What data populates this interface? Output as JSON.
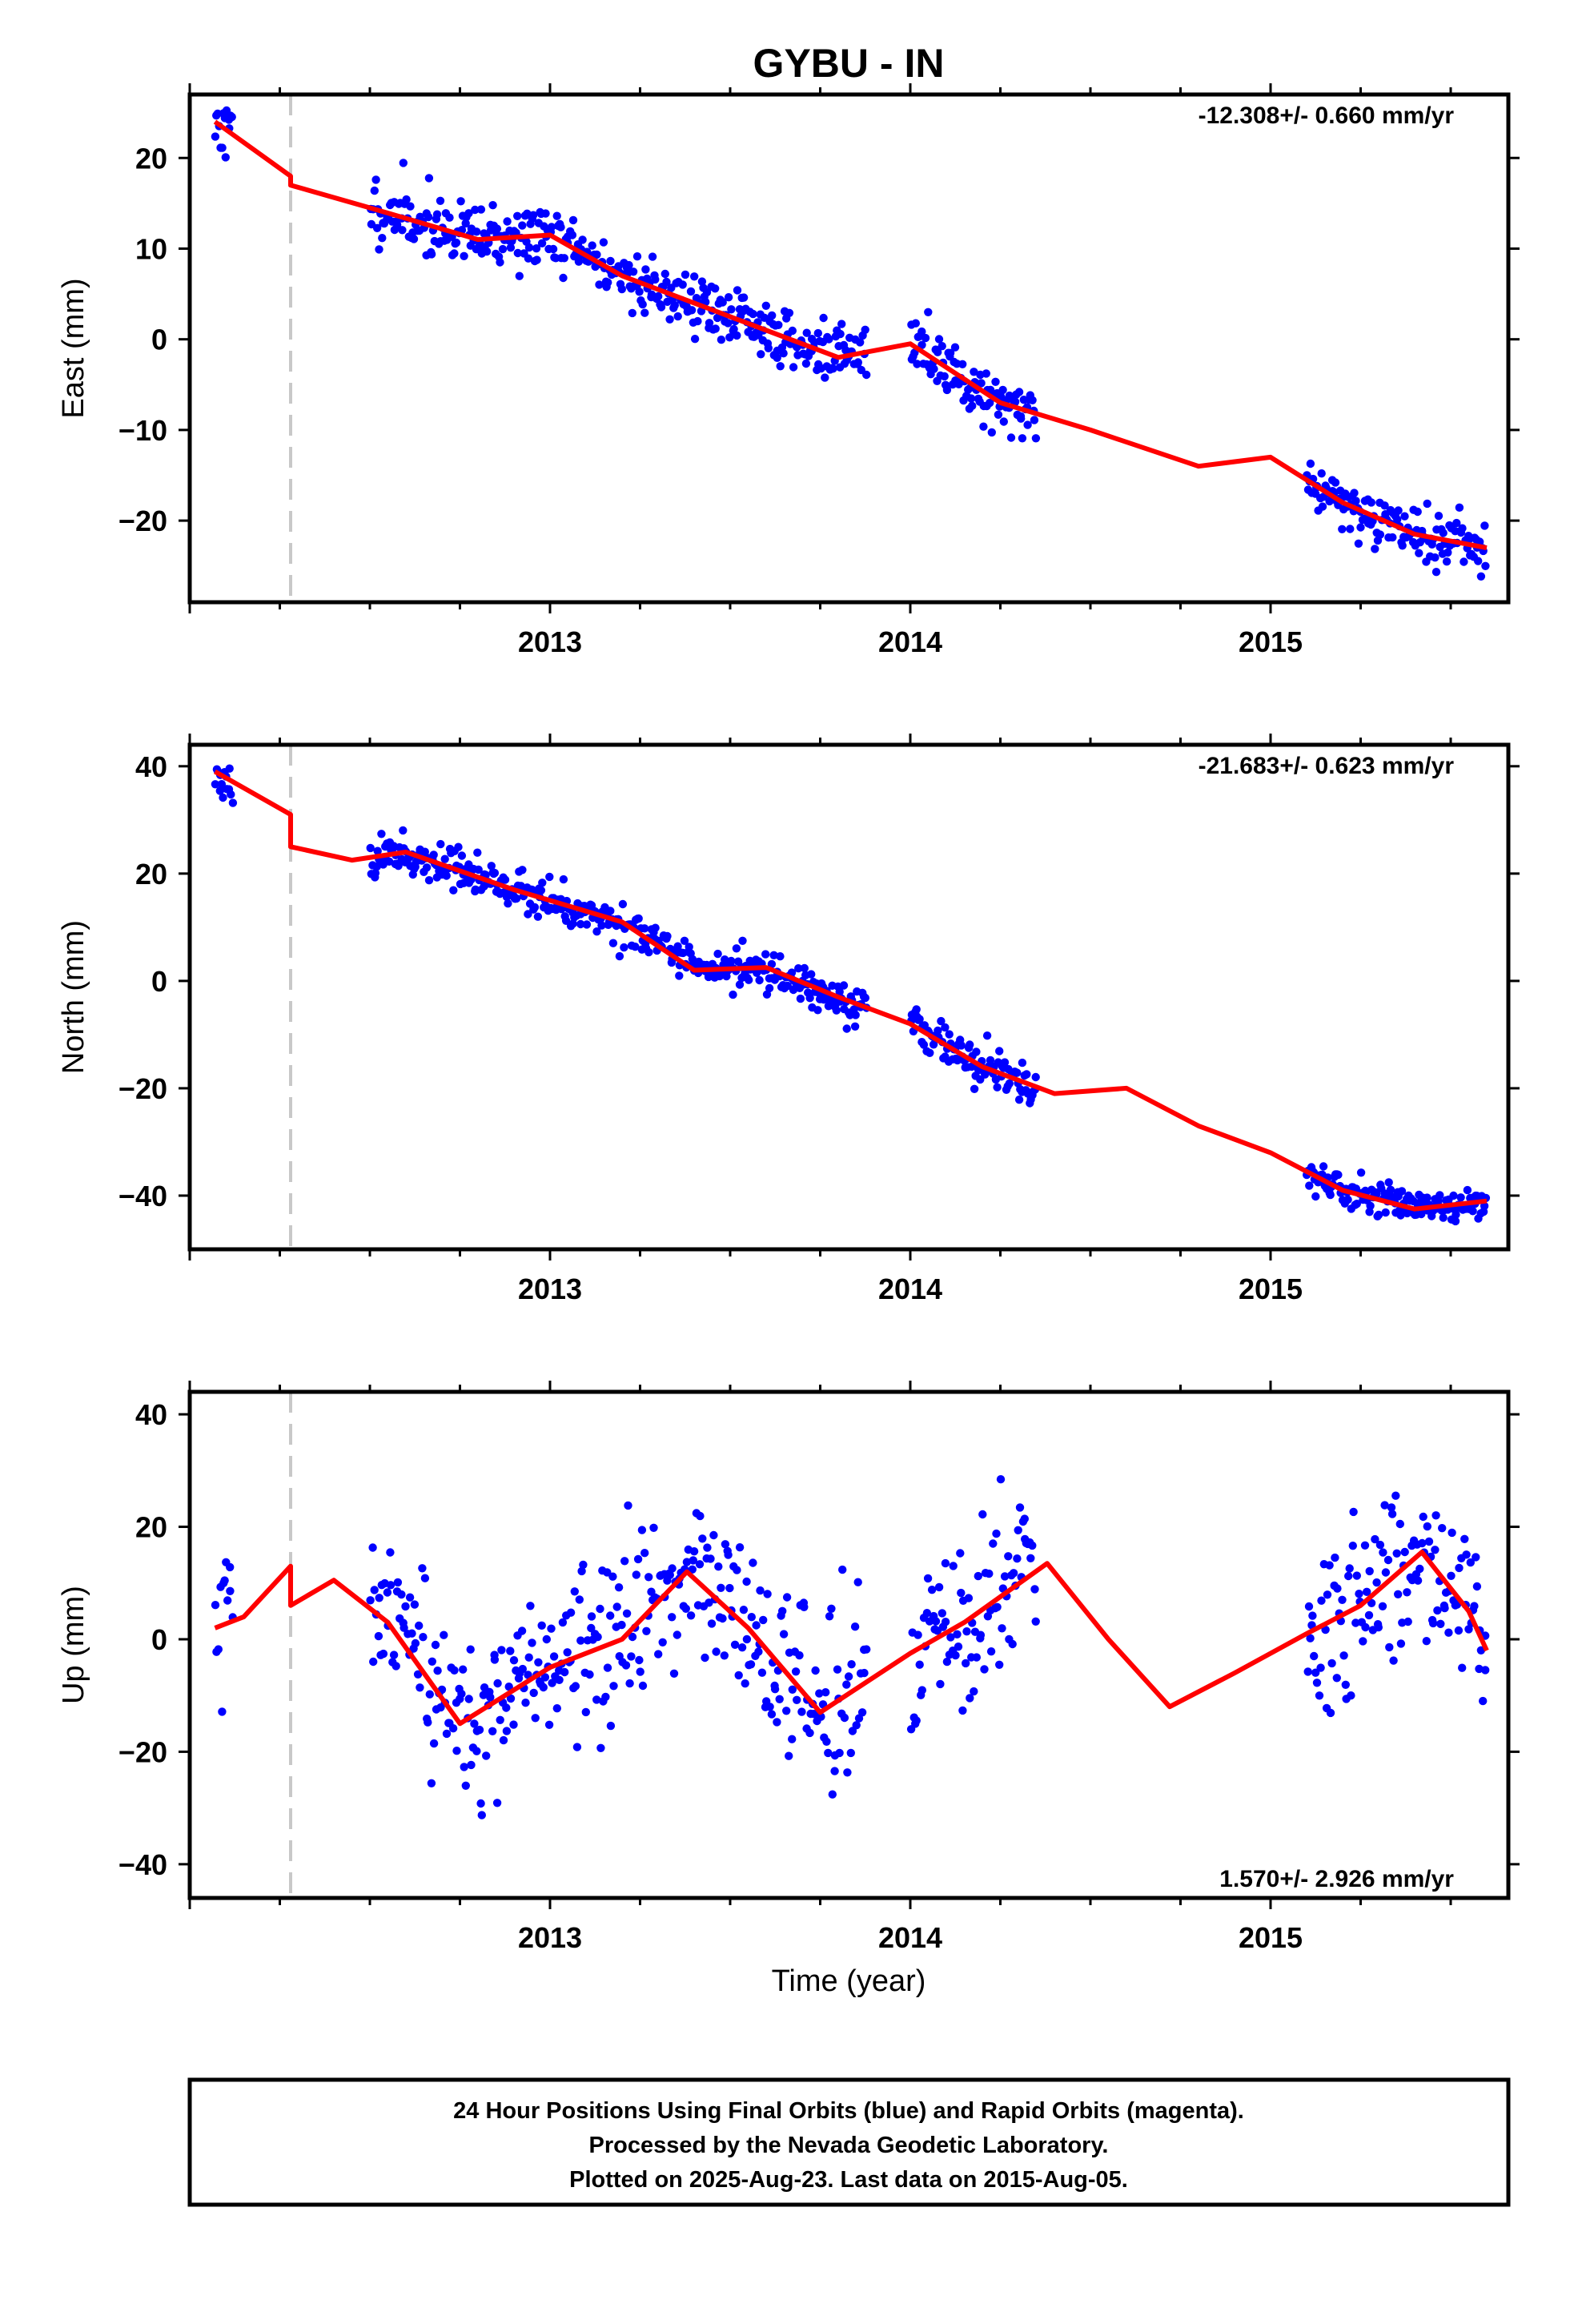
{
  "title": "GYBU - IN",
  "xlabel": "Time (year)",
  "footer": {
    "line1": "24 Hour Positions Using Final Orbits (blue) and Rapid Orbits (magenta).",
    "line2": "Processed by the Nevada Geodetic Laboratory.",
    "line3": "Plotted on 2025-Aug-23. Last data on 2015-Aug-05."
  },
  "colors": {
    "points": "#0000ff",
    "model": "#ff0000",
    "step_line": "#c8c8c8",
    "frame": "#000000"
  },
  "chart_data": [
    {
      "type": "scatter",
      "component": "east",
      "ylabel": "East (mm)",
      "rate_text": "-12.308+/- 0.660 mm/yr",
      "rate_position": "top-right",
      "xlim": [
        2012.0,
        2015.66
      ],
      "ylim": [
        -29,
        27
      ],
      "xticks": [
        2013,
        2014,
        2015
      ],
      "xtick_labels": [
        "2013",
        "2014",
        "2015"
      ],
      "yticks": [
        -20,
        -10,
        0,
        10,
        20
      ],
      "ytick_labels": [
        "−20",
        "−10",
        "0",
        "10",
        "20"
      ],
      "step_epoch": 2012.28,
      "data_segments": [
        [
          2012.07,
          2012.12
        ],
        [
          2012.5,
          2013.88
        ],
        [
          2014.0,
          2014.35
        ],
        [
          2015.1,
          2015.6
        ]
      ],
      "model": {
        "x": [
          2012.07,
          2012.28,
          2012.28,
          2012.5,
          2012.8,
          2013.0,
          2013.2,
          2013.5,
          2013.8,
          2014.0,
          2014.25,
          2014.5,
          2014.8,
          2015.0,
          2015.2,
          2015.4,
          2015.6
        ],
        "y": [
          24.0,
          18.0,
          17.0,
          14.5,
          11.0,
          11.5,
          7.0,
          2.5,
          -2.0,
          -0.5,
          -7.0,
          -10.0,
          -14.0,
          -13.0,
          -18.0,
          -21.5,
          -23.0
        ]
      },
      "points": {
        "n": 640,
        "sigma": 1.7,
        "seed": 11
      }
    },
    {
      "type": "scatter",
      "component": "north",
      "ylabel": "North (mm)",
      "rate_text": "-21.683+/- 0.623 mm/yr",
      "rate_position": "top-right",
      "xlim": [
        2012.0,
        2015.66
      ],
      "ylim": [
        -50,
        44
      ],
      "xticks": [
        2013,
        2014,
        2015
      ],
      "xtick_labels": [
        "2013",
        "2014",
        "2015"
      ],
      "yticks": [
        -40,
        -20,
        0,
        20,
        40
      ],
      "ytick_labels": [
        "−40",
        "−20",
        "0",
        "20",
        "40"
      ],
      "step_epoch": 2012.28,
      "data_segments": [
        [
          2012.07,
          2012.12
        ],
        [
          2012.5,
          2013.88
        ],
        [
          2014.0,
          2014.35
        ],
        [
          2015.1,
          2015.6
        ]
      ],
      "model": {
        "x": [
          2012.07,
          2012.28,
          2012.28,
          2012.45,
          2012.6,
          2012.9,
          2013.2,
          2013.4,
          2013.6,
          2013.8,
          2014.0,
          2014.2,
          2014.4,
          2014.6,
          2014.8,
          2015.0,
          2015.2,
          2015.4,
          2015.6
        ],
        "y": [
          39.0,
          31.0,
          25.0,
          22.5,
          24.0,
          17.0,
          11.0,
          2.0,
          2.5,
          -3.0,
          -8.0,
          -16.0,
          -21.0,
          -20.0,
          -27.0,
          -32.0,
          -39.0,
          -42.5,
          -41.0
        ]
      },
      "points": {
        "n": 640,
        "sigma": 1.8,
        "seed": 23
      }
    },
    {
      "type": "scatter",
      "component": "up",
      "ylabel": "Up (mm)",
      "rate_text": "1.570+/- 2.926 mm/yr",
      "rate_position": "bottom-right",
      "xlim": [
        2012.0,
        2015.66
      ],
      "ylim": [
        -46,
        44
      ],
      "xticks": [
        2013,
        2014,
        2015
      ],
      "xtick_labels": [
        "2013",
        "2014",
        "2015"
      ],
      "yticks": [
        -40,
        -20,
        0,
        20,
        40
      ],
      "ytick_labels": [
        "−40",
        "−20",
        "0",
        "20",
        "40"
      ],
      "step_epoch": 2012.28,
      "data_segments": [
        [
          2012.07,
          2012.12
        ],
        [
          2012.5,
          2013.88
        ],
        [
          2014.0,
          2014.35
        ],
        [
          2015.1,
          2015.6
        ]
      ],
      "model": {
        "x": [
          2012.07,
          2012.15,
          2012.28,
          2012.28,
          2012.4,
          2012.55,
          2012.75,
          2013.0,
          2013.2,
          2013.38,
          2013.55,
          2013.75,
          2014.0,
          2014.15,
          2014.38,
          2014.55,
          2014.72,
          2014.9,
          2015.1,
          2015.25,
          2015.42,
          2015.55,
          2015.6
        ],
        "y": [
          2.0,
          4.0,
          13.0,
          6.0,
          10.5,
          3.0,
          -15.0,
          -5.0,
          0.0,
          12.0,
          2.0,
          -13.0,
          -2.5,
          3.0,
          13.5,
          0.0,
          -12.0,
          -6.0,
          1.0,
          6.0,
          15.5,
          5.0,
          -2.0
        ]
      },
      "points": {
        "n": 560,
        "sigma": 7.5,
        "seed": 37
      }
    }
  ]
}
